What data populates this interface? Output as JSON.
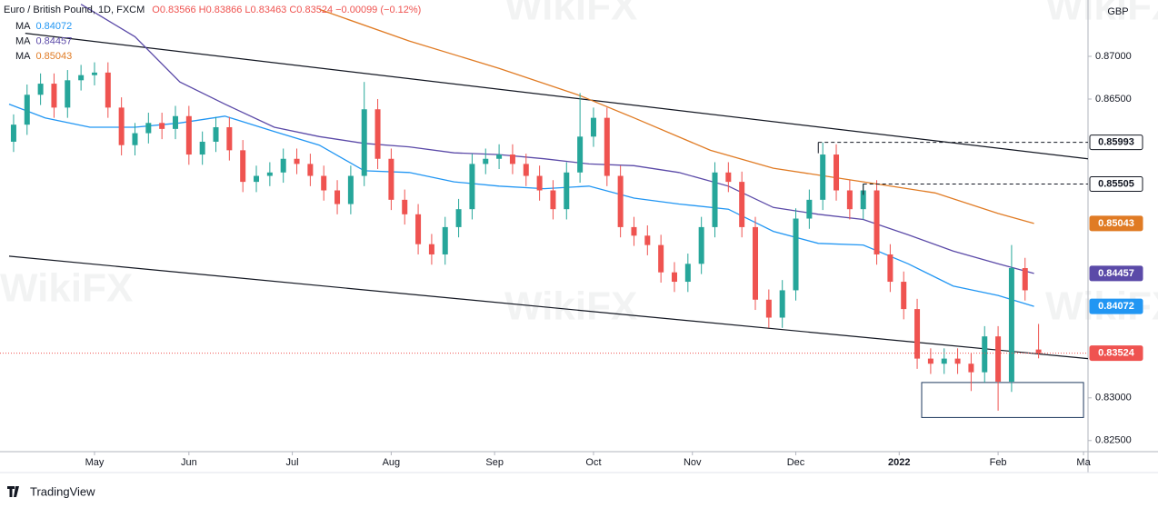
{
  "chart_data": {
    "type": "candlestick",
    "title": "Euro / British Pound, 1D, FXCM",
    "quote": "O0.83566 H0.83866 L0.83463 C0.83524 −0.00099 (−0.12%)",
    "currency": "GBP",
    "brand": "TradingView",
    "watermark": "WikiFX",
    "up_color": "#26a69a",
    "down_color": "#ef5350",
    "xlim": [
      0,
      240
    ],
    "ylim": [
      0.8237,
      0.8766
    ],
    "xticks": [
      {
        "value": 19,
        "label": "May"
      },
      {
        "value": 40,
        "label": "Jun"
      },
      {
        "value": 63,
        "label": "Jul"
      },
      {
        "value": 85,
        "label": "Aug"
      },
      {
        "value": 108,
        "label": "Sep"
      },
      {
        "value": 130,
        "label": "Oct"
      },
      {
        "value": 152,
        "label": "Nov"
      },
      {
        "value": 175,
        "label": "Dec"
      },
      {
        "value": 198,
        "label": "2022"
      },
      {
        "value": 220,
        "label": "Feb"
      },
      {
        "value": 239,
        "label": "Ma"
      }
    ],
    "yticks": [
      {
        "value": 0.87,
        "label": "0.87000"
      },
      {
        "value": 0.865,
        "label": "0.86500"
      },
      {
        "value": 0.83,
        "label": "0.83000"
      },
      {
        "value": 0.825,
        "label": "0.82500"
      }
    ],
    "candles": {
      "x": [
        1,
        4,
        7,
        10,
        13,
        16,
        19,
        22,
        25,
        28,
        31,
        34,
        37,
        40,
        43,
        46,
        49,
        52,
        55,
        58,
        61,
        64,
        67,
        70,
        73,
        76,
        79,
        82,
        85,
        88,
        91,
        94,
        97,
        100,
        103,
        106,
        109,
        112,
        115,
        118,
        121,
        124,
        127,
        130,
        133,
        136,
        139,
        142,
        145,
        148,
        151,
        154,
        157,
        160,
        163,
        166,
        169,
        172,
        175,
        178,
        181,
        184,
        187,
        190,
        193,
        196,
        199,
        202,
        205,
        208,
        211,
        214,
        217,
        220,
        223,
        226,
        229
      ],
      "open": [
        0.86,
        0.862,
        0.8655,
        0.8668,
        0.864,
        0.8672,
        0.8678,
        0.8681,
        0.864,
        0.8596,
        0.861,
        0.8622,
        0.8615,
        0.863,
        0.8585,
        0.86,
        0.8617,
        0.859,
        0.8553,
        0.856,
        0.8564,
        0.858,
        0.8574,
        0.856,
        0.8543,
        0.8527,
        0.856,
        0.8638,
        0.858,
        0.8532,
        0.8515,
        0.848,
        0.8468,
        0.85,
        0.8521,
        0.8574,
        0.858,
        0.8585,
        0.8574,
        0.856,
        0.8543,
        0.8521,
        0.8564,
        0.8606,
        0.8628,
        0.856,
        0.85,
        0.849,
        0.8479,
        0.8447,
        0.8436,
        0.8457,
        0.85,
        0.8564,
        0.8553,
        0.85,
        0.8415,
        0.8394,
        0.8426,
        0.851,
        0.8532,
        0.8585,
        0.8543,
        0.8521,
        0.8543,
        0.8468,
        0.8436,
        0.8404,
        0.8346,
        0.834,
        0.8346,
        0.834,
        0.833,
        0.8372,
        0.8319,
        0.8452,
        0.83566
      ],
      "high": [
        0.8632,
        0.8667,
        0.868,
        0.868,
        0.8684,
        0.869,
        0.8693,
        0.8693,
        0.8652,
        0.8622,
        0.8634,
        0.8634,
        0.8642,
        0.8642,
        0.8612,
        0.8629,
        0.8629,
        0.8602,
        0.8572,
        0.8576,
        0.8592,
        0.8592,
        0.8586,
        0.8572,
        0.8555,
        0.8572,
        0.867,
        0.865,
        0.8592,
        0.8544,
        0.8527,
        0.8492,
        0.8512,
        0.8533,
        0.8586,
        0.8592,
        0.8597,
        0.8597,
        0.8586,
        0.8572,
        0.8555,
        0.8576,
        0.8657,
        0.864,
        0.864,
        0.8572,
        0.8512,
        0.8502,
        0.8491,
        0.8459,
        0.8469,
        0.8512,
        0.8576,
        0.8576,
        0.8565,
        0.8512,
        0.8427,
        0.8438,
        0.8522,
        0.8544,
        0.8599,
        0.8597,
        0.8555,
        0.8551,
        0.8555,
        0.848,
        0.8448,
        0.8416,
        0.8358,
        0.8358,
        0.8358,
        0.8352,
        0.8384,
        0.8384,
        0.8479,
        0.8464,
        0.83866
      ],
      "low": [
        0.8588,
        0.8608,
        0.8643,
        0.8628,
        0.8628,
        0.866,
        0.8666,
        0.8628,
        0.8584,
        0.8584,
        0.8598,
        0.8603,
        0.8603,
        0.8573,
        0.8573,
        0.8588,
        0.8578,
        0.8541,
        0.8541,
        0.8548,
        0.8552,
        0.8562,
        0.8548,
        0.8531,
        0.8515,
        0.8515,
        0.8548,
        0.8568,
        0.852,
        0.8503,
        0.8468,
        0.8456,
        0.8456,
        0.8488,
        0.8509,
        0.8562,
        0.8568,
        0.8562,
        0.8548,
        0.8531,
        0.8509,
        0.8509,
        0.8552,
        0.8594,
        0.8548,
        0.8488,
        0.8478,
        0.8467,
        0.8435,
        0.8424,
        0.8424,
        0.8445,
        0.8488,
        0.8541,
        0.8488,
        0.8403,
        0.8382,
        0.8382,
        0.8414,
        0.8498,
        0.852,
        0.8531,
        0.8509,
        0.8509,
        0.8456,
        0.8424,
        0.8392,
        0.8334,
        0.8328,
        0.8328,
        0.8328,
        0.8308,
        0.8318,
        0.8285,
        0.8307,
        0.8414,
        0.83463
      ],
      "close": [
        0.862,
        0.8655,
        0.8668,
        0.864,
        0.8672,
        0.8678,
        0.8681,
        0.864,
        0.8596,
        0.861,
        0.8622,
        0.8615,
        0.863,
        0.8585,
        0.86,
        0.8617,
        0.859,
        0.8553,
        0.856,
        0.8564,
        0.858,
        0.8574,
        0.856,
        0.8543,
        0.8527,
        0.856,
        0.8638,
        0.858,
        0.8532,
        0.8515,
        0.848,
        0.8468,
        0.85,
        0.8521,
        0.8574,
        0.858,
        0.8585,
        0.8574,
        0.856,
        0.8543,
        0.8521,
        0.8564,
        0.8606,
        0.8628,
        0.856,
        0.85,
        0.849,
        0.8479,
        0.8447,
        0.8436,
        0.8457,
        0.85,
        0.8564,
        0.8553,
        0.85,
        0.8415,
        0.8394,
        0.8426,
        0.851,
        0.8532,
        0.8585,
        0.8543,
        0.8521,
        0.8543,
        0.8468,
        0.8436,
        0.8404,
        0.8346,
        0.834,
        0.8346,
        0.834,
        0.833,
        0.8372,
        0.8319,
        0.8452,
        0.8426,
        0.83524
      ]
    },
    "series": [
      {
        "name": "MA",
        "color": "#2196f3",
        "x": [
          0,
          8,
          18,
          28,
          38,
          48,
          59,
          69,
          79,
          89,
          99,
          109,
          119,
          129,
          139,
          149,
          160,
          170,
          180,
          190,
          200,
          210,
          220,
          228
        ],
        "values": [
          0.8644,
          0.8628,
          0.8617,
          0.8617,
          0.8622,
          0.863,
          0.8612,
          0.8596,
          0.8566,
          0.8564,
          0.8553,
          0.8548,
          0.8545,
          0.8548,
          0.8534,
          0.8527,
          0.8521,
          0.8495,
          0.8481,
          0.8479,
          0.8457,
          0.8431,
          0.842,
          0.84072
        ]
      },
      {
        "name": "MA",
        "color": "#5b4aa8",
        "x": [
          16,
          28,
          38,
          48,
          59,
          69,
          79,
          89,
          99,
          109,
          119,
          129,
          139,
          149,
          160,
          170,
          180,
          190,
          200,
          210,
          220,
          228
        ],
        "values": [
          0.8761,
          0.8723,
          0.867,
          0.8644,
          0.8617,
          0.8606,
          0.8598,
          0.8594,
          0.8587,
          0.8585,
          0.858,
          0.8574,
          0.8572,
          0.8564,
          0.8548,
          0.8523,
          0.8515,
          0.8509,
          0.8491,
          0.8472,
          0.8457,
          0.84457
        ]
      },
      {
        "name": "MA",
        "color": "#e07b24",
        "x": [
          69,
          89,
          109,
          127,
          139,
          156,
          170,
          190,
          206,
          220,
          228
        ],
        "values": [
          0.8755,
          0.8718,
          0.8686,
          0.8654,
          0.8628,
          0.859,
          0.8569,
          0.8553,
          0.854,
          0.8516,
          0.85043
        ]
      }
    ],
    "trendlines": [
      {
        "x": [
          3.6,
          240
        ],
        "values": [
          0.8727,
          0.858
        ]
      },
      {
        "x": [
          0,
          240
        ],
        "values": [
          0.8466,
          0.8346
        ]
      }
    ],
    "levels": [
      {
        "x0": 180,
        "value": 0.85993
      },
      {
        "x0": 190,
        "value": 0.85505
      }
    ],
    "box": {
      "x": [
        203,
        239
      ],
      "values": [
        0.8318,
        0.8277
      ]
    }
  }
}
